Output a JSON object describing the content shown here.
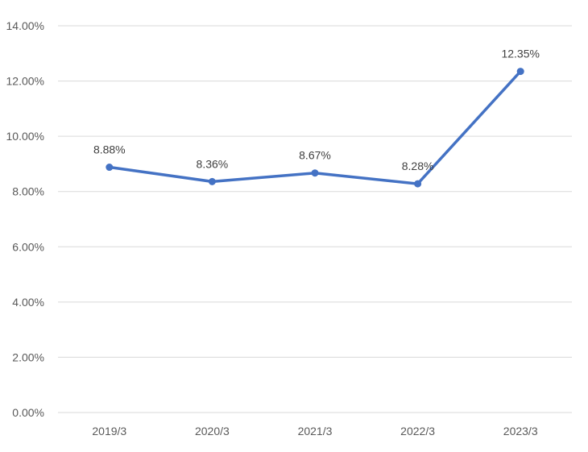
{
  "chart_data": {
    "type": "line",
    "categories": [
      "2019/3",
      "2020/3",
      "2021/3",
      "2022/3",
      "2023/3"
    ],
    "series": [
      {
        "values": [
          8.88,
          8.36,
          8.67,
          8.28,
          12.35
        ],
        "data_labels": [
          "8.88%",
          "8.36%",
          "8.67%",
          "8.28%",
          "12.35%"
        ]
      }
    ],
    "y_ticks": [
      "0.00%",
      "2.00%",
      "4.00%",
      "6.00%",
      "8.00%",
      "10.00%",
      "12.00%",
      "14.00%"
    ],
    "ylim": [
      0,
      14
    ],
    "grid": true,
    "line_color": "#4472C4",
    "grid_color": "#D9D9D9"
  }
}
